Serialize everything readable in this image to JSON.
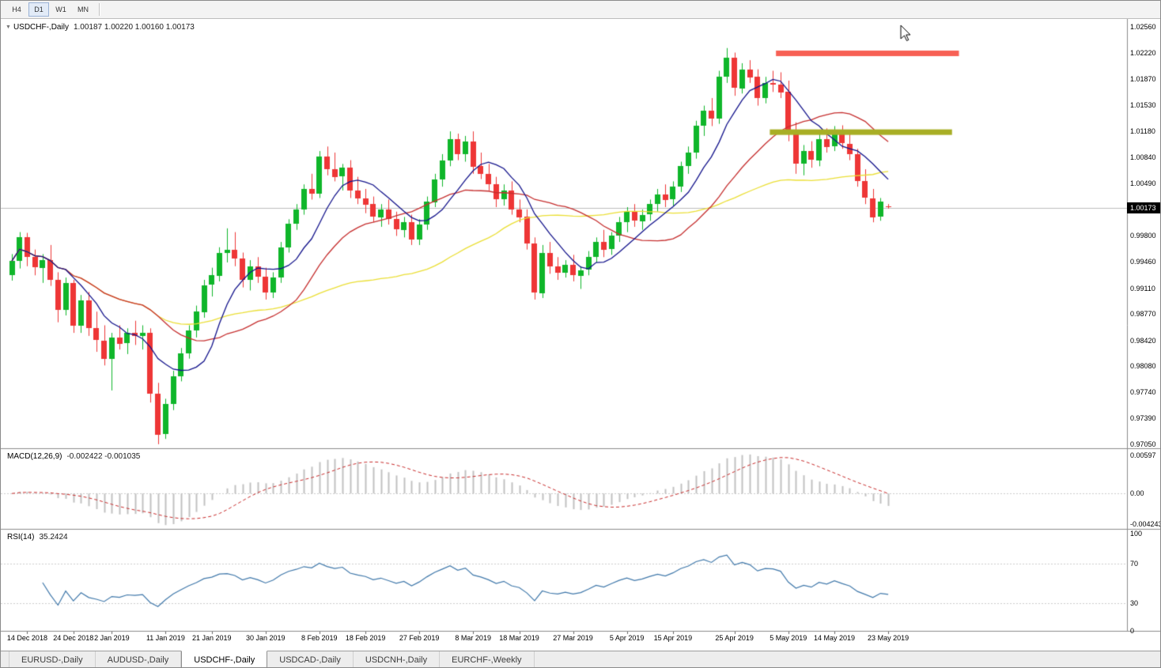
{
  "toolbar": {
    "timeframes": [
      "H4",
      "D1",
      "W1",
      "MN"
    ],
    "active_timeframe": "D1"
  },
  "main_chart": {
    "symbol_title": "USDCHF-,Daily",
    "ohlc": "1.00187 1.00220 1.00160 1.00173",
    "current_price": "1.00173",
    "price_axis_labels": [
      "1.02560",
      "1.02220",
      "1.01870",
      "1.01530",
      "1.01180",
      "1.00840",
      "1.00490",
      "0.99800",
      "0.99460",
      "0.99110",
      "0.98770",
      "0.98420",
      "0.98080",
      "0.97740",
      "0.97390",
      "0.97050"
    ],
    "colors": {
      "up": "#0fb62a",
      "down": "#ee3636",
      "ma_fast": "#14148c",
      "ma_mid": "#c62f2f",
      "ma_slow": "#ebdf35",
      "resistance": "#f76055",
      "support": "#a8ae25",
      "price_line": "#bdbdbd",
      "price_box_bg": "#000000",
      "price_box_text": "#ffffff"
    }
  },
  "macd_panel": {
    "label": "MACD(12,26,9)",
    "values": "-0.002422 -0.001035",
    "axis_labels": {
      "top": "0.00597",
      "zero": "0.00",
      "bottom": "-0.004243"
    },
    "colors": {
      "hist": "#c2c2c2",
      "signal": "#c92b2b"
    }
  },
  "rsi_panel": {
    "label": "RSI(14)",
    "value": "35.2424",
    "axis_labels": [
      "100",
      "70",
      "30",
      "0"
    ],
    "levels": [
      70,
      30
    ],
    "color": "#4179ab"
  },
  "tabs": [
    "EURUSD-,Daily",
    "AUDUSD-,Daily",
    "USDCHF-,Daily",
    "USDCAD-,Daily",
    "USDCNH-,Daily",
    "EURCHF-,Weekly"
  ],
  "active_tab_index": 2,
  "chart_data": {
    "type": "candlestick",
    "symbol": "USDCHF-",
    "timeframe": "Daily",
    "price_range": {
      "top": 1.02664,
      "bottom": 0.96997
    },
    "candles": [
      [
        0.9928,
        0.9956,
        0.9921,
        0.9947
      ],
      [
        0.9947,
        0.9985,
        0.9937,
        0.9978
      ],
      [
        0.9978,
        0.9984,
        0.994,
        0.9952
      ],
      [
        0.9952,
        0.9962,
        0.9928,
        0.9938
      ],
      [
        0.9938,
        0.9956,
        0.9918,
        0.9948
      ],
      [
        0.9948,
        0.9968,
        0.9914,
        0.9922
      ],
      [
        0.9922,
        0.9932,
        0.9866,
        0.9882
      ],
      [
        0.9882,
        0.9925,
        0.9875,
        0.9918
      ],
      [
        0.9918,
        0.9922,
        0.9852,
        0.9862
      ],
      [
        0.9862,
        0.9902,
        0.9852,
        0.9895
      ],
      [
        0.9895,
        0.9906,
        0.9848,
        0.9858
      ],
      [
        0.9858,
        0.988,
        0.9827,
        0.9842
      ],
      [
        0.9842,
        0.9862,
        0.9809,
        0.9818
      ],
      [
        0.9818,
        0.9852,
        0.9776,
        0.9846
      ],
      [
        0.9846,
        0.9862,
        0.983,
        0.9838
      ],
      [
        0.9838,
        0.9858,
        0.9824,
        0.9852
      ],
      [
        0.9852,
        0.9868,
        0.9836,
        0.9848
      ],
      [
        0.9848,
        0.9862,
        0.983,
        0.9852
      ],
      [
        0.9852,
        0.9858,
        0.976,
        0.9772
      ],
      [
        0.9772,
        0.9786,
        0.9705,
        0.9718
      ],
      [
        0.9718,
        0.9765,
        0.9712,
        0.9758
      ],
      [
        0.9758,
        0.9802,
        0.975,
        0.9795
      ],
      [
        0.9795,
        0.9832,
        0.9788,
        0.9825
      ],
      [
        0.9825,
        0.9862,
        0.9818,
        0.9855
      ],
      [
        0.9855,
        0.9888,
        0.9846,
        0.988
      ],
      [
        0.988,
        0.9922,
        0.9872,
        0.9915
      ],
      [
        0.9915,
        0.9938,
        0.99,
        0.9928
      ],
      [
        0.9928,
        0.9965,
        0.992,
        0.9958
      ],
      [
        0.9958,
        0.999,
        0.9945,
        0.9962
      ],
      [
        0.9962,
        0.9985,
        0.994,
        0.995
      ],
      [
        0.995,
        0.9958,
        0.9912,
        0.9922
      ],
      [
        0.9922,
        0.9948,
        0.9908,
        0.994
      ],
      [
        0.994,
        0.9952,
        0.9918,
        0.9926
      ],
      [
        0.9926,
        0.9938,
        0.9896,
        0.9905
      ],
      [
        0.9905,
        0.9932,
        0.9898,
        0.9925
      ],
      [
        0.9925,
        0.9972,
        0.9918,
        0.9965
      ],
      [
        0.9965,
        1.0002,
        0.9958,
        0.9996
      ],
      [
        0.9996,
        1.0022,
        0.9988,
        1.0015
      ],
      [
        1.0015,
        1.0048,
        1.0008,
        1.0042
      ],
      [
        1.0042,
        1.0062,
        1.0028,
        1.0036
      ],
      [
        1.0036,
        1.0092,
        1.003,
        1.0085
      ],
      [
        1.0085,
        1.0098,
        1.006,
        1.0068
      ],
      [
        1.0068,
        1.009,
        1.0052,
        1.0058
      ],
      [
        1.0058,
        1.0075,
        1.004,
        1.007
      ],
      [
        1.007,
        1.008,
        1.003,
        1.004
      ],
      [
        1.004,
        1.0058,
        1.0022,
        1.003
      ],
      [
        1.003,
        1.0042,
        1.001,
        1.0022
      ],
      [
        1.0022,
        1.0032,
        0.9998,
        1.0005
      ],
      [
        1.0005,
        1.0022,
        0.9992,
        1.0015
      ],
      [
        1.0015,
        1.0028,
        0.9995,
        1.0002
      ],
      [
        1.0002,
        1.0012,
        0.998,
        0.9988
      ],
      [
        0.9988,
        1.0005,
        0.9978,
        0.9998
      ],
      [
        0.9998,
        1.0008,
        0.9968,
        0.9975
      ],
      [
        0.9975,
        1.0002,
        0.9968,
        0.9995
      ],
      [
        0.9995,
        1.0032,
        0.9988,
        1.0025
      ],
      [
        1.0025,
        1.0062,
        1.0018,
        1.0055
      ],
      [
        1.0055,
        1.0088,
        1.0045,
        1.008
      ],
      [
        1.008,
        1.0118,
        1.0072,
        1.0108
      ],
      [
        1.0108,
        1.0115,
        1.008,
        1.0088
      ],
      [
        1.0088,
        1.0112,
        1.0078,
        1.0105
      ],
      [
        1.0105,
        1.0118,
        1.0062,
        1.0072
      ],
      [
        1.0072,
        1.009,
        1.0055,
        1.0062
      ],
      [
        1.0062,
        1.0075,
        1.004,
        1.0048
      ],
      [
        1.0048,
        1.0058,
        1.0018,
        1.0028
      ],
      [
        1.0028,
        1.0048,
        1.002,
        1.004
      ],
      [
        1.004,
        1.0052,
        1.0008,
        1.0015
      ],
      [
        1.0015,
        1.0028,
        0.9998,
        1.0005
      ],
      [
        1.0005,
        1.0015,
        0.9962,
        0.997
      ],
      [
        0.997,
        0.9978,
        0.9896,
        0.9905
      ],
      [
        0.9905,
        0.9968,
        0.9898,
        0.9958
      ],
      [
        0.9958,
        0.9972,
        0.993,
        0.994
      ],
      [
        0.994,
        0.9952,
        0.9922,
        0.9932
      ],
      [
        0.9932,
        0.9948,
        0.9925,
        0.9942
      ],
      [
        0.9942,
        0.9955,
        0.992,
        0.9928
      ],
      [
        0.9928,
        0.994,
        0.991,
        0.9935
      ],
      [
        0.9935,
        0.996,
        0.9928,
        0.9952
      ],
      [
        0.9952,
        0.9978,
        0.9945,
        0.9972
      ],
      [
        0.9972,
        0.9988,
        0.9952,
        0.9962
      ],
      [
        0.9962,
        0.9985,
        0.9955,
        0.998
      ],
      [
        0.998,
        1.0005,
        0.9972,
        0.9998
      ],
      [
        0.9998,
        1.0018,
        0.9985,
        1.0012
      ],
      [
        1.0012,
        1.0022,
        0.9992,
        1.0
      ],
      [
        1.0,
        1.0015,
        0.9988,
        1.0008
      ],
      [
        1.0008,
        1.0028,
        1.0,
        1.0022
      ],
      [
        1.0022,
        1.0042,
        1.0012,
        1.0035
      ],
      [
        1.0035,
        1.0048,
        1.0018,
        1.0028
      ],
      [
        1.0028,
        1.0052,
        1.002,
        1.0045
      ],
      [
        1.0045,
        1.0078,
        1.0038,
        1.0072
      ],
      [
        1.0072,
        1.0098,
        1.0062,
        1.009
      ],
      [
        1.009,
        1.0132,
        1.0082,
        1.0125
      ],
      [
        1.0125,
        1.0152,
        1.0112,
        1.0145
      ],
      [
        1.0145,
        1.0162,
        1.0125,
        1.0135
      ],
      [
        1.0135,
        1.0198,
        1.0128,
        1.019
      ],
      [
        1.019,
        1.0228,
        1.0182,
        1.0215
      ],
      [
        1.0215,
        1.0222,
        1.0165,
        1.0175
      ],
      [
        1.0175,
        1.0208,
        1.0168,
        1.02
      ],
      [
        1.02,
        1.0212,
        1.0182,
        1.019
      ],
      [
        1.019,
        1.02,
        1.0152,
        1.0162
      ],
      [
        1.0162,
        1.019,
        1.0155,
        1.0182
      ],
      [
        1.0182,
        1.0198,
        1.017,
        1.018
      ],
      [
        1.018,
        1.0196,
        1.0162,
        1.017
      ],
      [
        1.017,
        1.0185,
        1.0105,
        1.0115
      ],
      [
        1.0115,
        1.013,
        1.0062,
        1.0075
      ],
      [
        1.0075,
        1.01,
        1.006,
        1.0092
      ],
      [
        1.0092,
        1.0105,
        1.007,
        1.008
      ],
      [
        1.008,
        1.0115,
        1.0072,
        1.0108
      ],
      [
        1.0108,
        1.0122,
        1.009,
        1.0098
      ],
      [
        1.0098,
        1.0125,
        1.0092,
        1.0118
      ],
      [
        1.0118,
        1.0126,
        1.0095,
        1.0102
      ],
      [
        1.0102,
        1.012,
        1.008,
        1.0088
      ],
      [
        1.0088,
        1.0095,
        1.0045,
        1.0052
      ],
      [
        1.0052,
        1.0068,
        1.0022,
        1.003
      ],
      [
        1.003,
        1.0042,
        0.9998,
        1.0005
      ],
      [
        1.0005,
        1.003,
        1.0,
        1.0025
      ],
      [
        1.00187,
        1.0022,
        1.0016,
        1.00173
      ]
    ],
    "x_labels": [
      [
        2,
        "14 Dec 2018"
      ],
      [
        8,
        "24 Dec 2018"
      ],
      [
        13,
        "2 Jan 2019"
      ],
      [
        20,
        "11 Jan 2019"
      ],
      [
        26,
        "21 Jan 2019"
      ],
      [
        33,
        "30 Jan 2019"
      ],
      [
        40,
        "8 Feb 2019"
      ],
      [
        46,
        "18 Feb 2019"
      ],
      [
        53,
        "27 Feb 2019"
      ],
      [
        60,
        "8 Mar 2019"
      ],
      [
        66,
        "18 Mar 2019"
      ],
      [
        73,
        "27 Mar 2019"
      ],
      [
        80,
        "5 Apr 2019"
      ],
      [
        86,
        "15 Apr 2019"
      ],
      [
        94,
        "25 Apr 2019"
      ],
      [
        101,
        "5 May 2019"
      ],
      [
        107,
        "14 May 2019"
      ],
      [
        114,
        "23 May 2019"
      ]
    ],
    "moving_averages": [
      {
        "period": 45,
        "color": "#ebdf35"
      },
      {
        "period": 20,
        "color": "#c62f2f"
      },
      {
        "period": 8,
        "color": "#14148c"
      }
    ],
    "levels": [
      {
        "price": 1.0221,
        "color": "#f76055",
        "from_i": 99.4,
        "to_i": 123.2,
        "height": 7
      },
      {
        "price": 1.0117,
        "color": "#a8ae25",
        "from_i": 98.6,
        "to_i": 122.3,
        "height": 7
      }
    ],
    "indicators": {
      "macd": {
        "fast": 12,
        "slow": 26,
        "signal": 9
      },
      "rsi": {
        "period": 14
      }
    }
  }
}
